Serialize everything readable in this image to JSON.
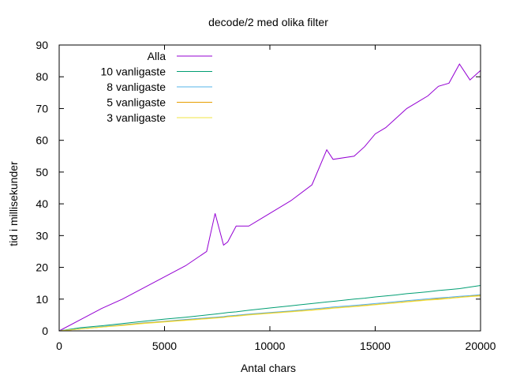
{
  "chart_data": {
    "type": "line",
    "title": "decode/2 med olika filter",
    "xlabel": "Antal chars",
    "ylabel": "tid i millisekunder",
    "xlim": [
      0,
      20000
    ],
    "ylim": [
      0,
      90
    ],
    "xticks": [
      "0",
      "5000",
      "10000",
      "15000",
      "20000"
    ],
    "yticks": [
      "0",
      "10",
      "20",
      "30",
      "40",
      "50",
      "60",
      "70",
      "80",
      "90"
    ],
    "grid": false,
    "legend": "top-left",
    "x": [
      0,
      1000,
      2000,
      3000,
      4000,
      5000,
      6000,
      7000,
      7400,
      7800,
      8000,
      8400,
      9000,
      10000,
      11000,
      12000,
      12700,
      13000,
      14000,
      14500,
      15000,
      15500,
      16000,
      16500,
      17000,
      17500,
      18000,
      18500,
      19000,
      19500,
      20000
    ],
    "series": [
      {
        "name": "Alla",
        "color": "#9400d3",
        "values": [
          0,
          3.5,
          7,
          10,
          13.5,
          17,
          20.5,
          25,
          37,
          27,
          28,
          33,
          33,
          37,
          41,
          46,
          57,
          54,
          55,
          58,
          62,
          64,
          67,
          70,
          72,
          74,
          77,
          78,
          84,
          79,
          82
        ]
      },
      {
        "name": "10 vanligaste",
        "color": "#009e73",
        "values": [
          0,
          1,
          1.6,
          2.3,
          3,
          3.7,
          4.3,
          5,
          5.3,
          5.6,
          5.8,
          6,
          6.5,
          7.2,
          7.9,
          8.6,
          9.1,
          9.3,
          10,
          10.3,
          10.7,
          11,
          11.3,
          11.7,
          12,
          12.3,
          12.7,
          13,
          13.3,
          13.8,
          14.3
        ]
      },
      {
        "name": "8 vanligaste",
        "color": "#56b4e9",
        "values": [
          0,
          0.7,
          1.3,
          1.9,
          2.5,
          3,
          3.6,
          4.1,
          4.3,
          4.5,
          4.7,
          4.9,
          5.3,
          5.8,
          6.3,
          6.9,
          7.3,
          7.5,
          8,
          8.3,
          8.6,
          8.9,
          9.2,
          9.5,
          9.8,
          10.1,
          10.4,
          10.6,
          10.9,
          11.1,
          11.4
        ]
      },
      {
        "name": "5 vanligaste",
        "color": "#e69f00",
        "values": [
          0,
          0.6,
          1.2,
          1.8,
          2.4,
          2.9,
          3.4,
          3.9,
          4.1,
          4.3,
          4.5,
          4.7,
          5.1,
          5.6,
          6.1,
          6.6,
          7,
          7.2,
          7.7,
          8,
          8.3,
          8.6,
          8.9,
          9.2,
          9.5,
          9.8,
          10.1,
          10.3,
          10.6,
          10.9,
          11.2
        ]
      },
      {
        "name": "3 vanligaste",
        "color": "#f0e442",
        "values": [
          0,
          0.6,
          1.2,
          1.7,
          2.3,
          2.8,
          3.3,
          3.8,
          4,
          4.2,
          4.4,
          4.6,
          5,
          5.5,
          6,
          6.5,
          6.9,
          7.1,
          7.6,
          7.9,
          8.2,
          8.5,
          8.8,
          9.1,
          9.4,
          9.7,
          9.9,
          10.2,
          10.5,
          10.8,
          11
        ]
      }
    ]
  }
}
